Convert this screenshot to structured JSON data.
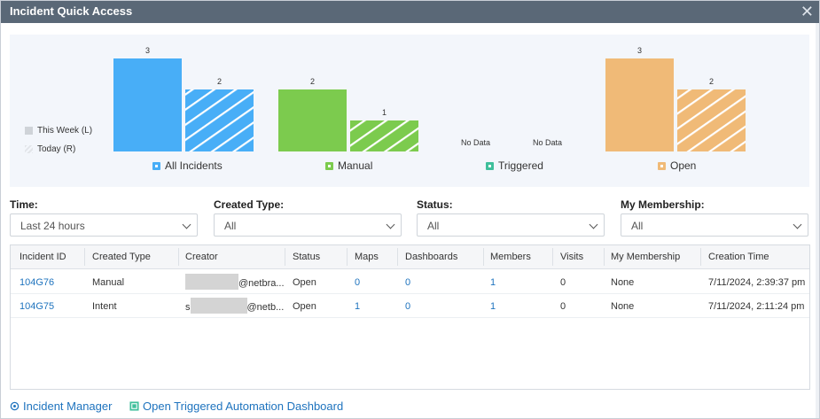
{
  "window": {
    "title": "Incident Quick Access",
    "close_icon": "close-icon"
  },
  "chart_data": {
    "type": "bar",
    "categories": [
      "All Incidents",
      "Manual",
      "Triggered",
      "Open"
    ],
    "series": [
      {
        "name": "This Week (L)",
        "values": [
          3,
          2,
          null,
          3
        ]
      },
      {
        "name": "Today (R)",
        "values": [
          2,
          1,
          null,
          2
        ]
      }
    ],
    "no_data_label": "No Data",
    "colors": {
      "All Incidents": "#48aef7",
      "Manual": "#7ccb4e",
      "Triggered": "#3fbf9b",
      "Open": "#f0ba77"
    },
    "legend": "left",
    "ylim": [
      0,
      3
    ]
  },
  "filters": {
    "time": {
      "label": "Time:",
      "value": "Last 24 hours"
    },
    "created_type": {
      "label": "Created Type:",
      "value": "All"
    },
    "status": {
      "label": "Status:",
      "value": "All"
    },
    "membership": {
      "label": "My Membership:",
      "value": "All"
    }
  },
  "table": {
    "columns": [
      "Incident ID",
      "Created Type",
      "Creator",
      "Status",
      "Maps",
      "Dashboards",
      "Members",
      "Visits",
      "My Membership",
      "Creation Time"
    ],
    "rows": [
      {
        "id": "104G76",
        "type": "Manual",
        "creator_prefix": "",
        "creator_suffix": "@netbra...",
        "status": "Open",
        "maps": "0",
        "dashboards": "0",
        "members": "1",
        "visits": "0",
        "membership": "None",
        "time": "7/11/2024, 2:39:37 pm"
      },
      {
        "id": "104G75",
        "type": "Intent",
        "creator_prefix": "s",
        "creator_suffix": "@netb...",
        "status": "Open",
        "maps": "1",
        "dashboards": "0",
        "members": "1",
        "visits": "0",
        "membership": "None",
        "time": "7/11/2024, 2:11:24 pm"
      }
    ]
  },
  "footer": {
    "incident_manager": "Incident Manager",
    "triggered_dashboard": "Open Triggered Automation Dashboard"
  }
}
